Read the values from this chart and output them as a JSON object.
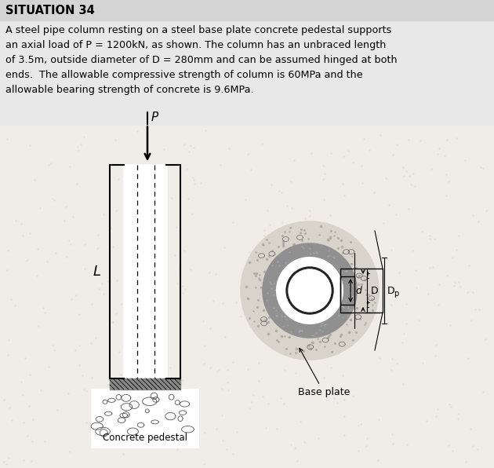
{
  "title": "SITUATION 34",
  "lines": [
    "A steel pipe column resting on a steel base plate concrete pedestal supports",
    "an axial load of P = 1200kN, as shown. The column has an unbraced length",
    "of 3.5m, outside diameter of D = 280mm and can be assumed hinged at both",
    "ends.  The allowable compressive strength of column is 60MPa and the",
    "allowable bearing strength of concrete is 9.6MPa."
  ],
  "bg_color": "#e8e8e8",
  "diagram_bg": "#f0ede8",
  "text_color": "#000000",
  "title_fontsize": 10.5,
  "body_fontsize": 9.2,
  "fig_width": 6.3,
  "fig_height": 5.96,
  "title_bar_color": "#d4d4d4"
}
